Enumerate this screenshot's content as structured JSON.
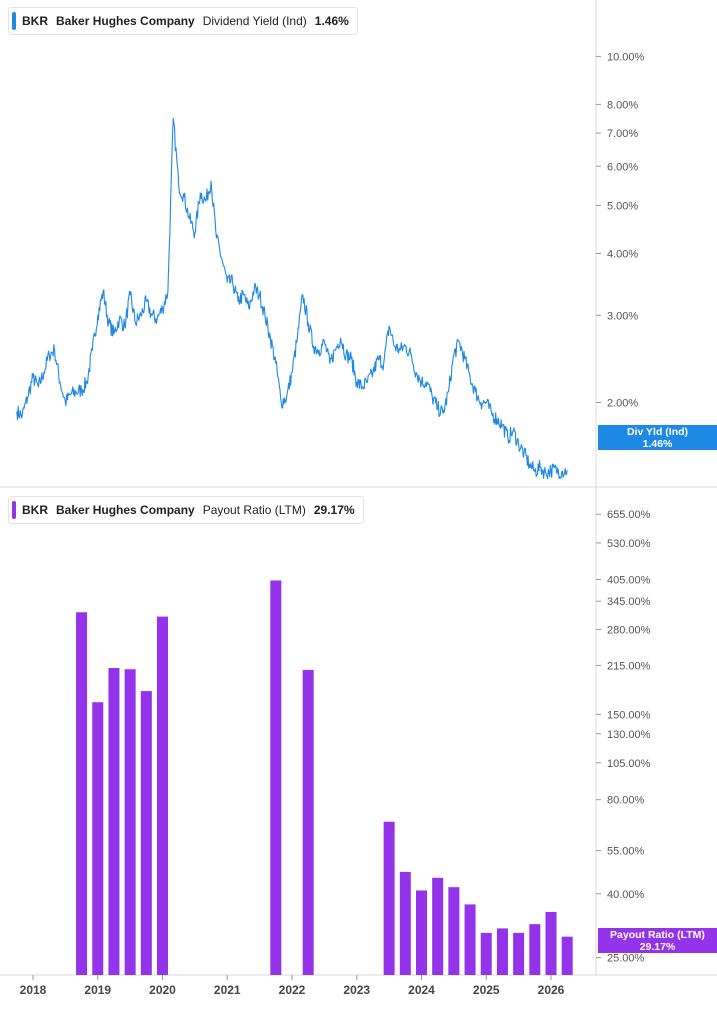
{
  "colors": {
    "yield": "#1e88e5",
    "payout": "#9333ea"
  },
  "yield_legend": {
    "ticker": "BKR",
    "company": "Baker Hughes Company",
    "metric": "Dividend Yield (Ind)",
    "value": "1.46%"
  },
  "payout_legend": {
    "ticker": "BKR",
    "company": "Baker Hughes Company",
    "metric": "Payout Ratio (LTM)",
    "value": "29.17%"
  },
  "yield_flag": {
    "label": "Div Yld (Ind)",
    "value": "1.46%"
  },
  "payout_flag": {
    "label": "Payout Ratio (LTM)",
    "value": "29.17%"
  },
  "chart_data": [
    {
      "type": "line",
      "y_scale": "log",
      "y_ticks": [
        "10.00%",
        "8.00%",
        "7.00%",
        "6.00%",
        "5.00%",
        "4.00%",
        "3.00%",
        "2.00%"
      ],
      "y_tick_values": [
        10,
        8,
        7,
        6,
        5,
        4,
        3,
        2
      ],
      "ylim": [
        1.35,
        13
      ],
      "x": [
        "2017-10",
        "2017-11",
        "2017-12",
        "2018-01",
        "2018-02",
        "2018-03",
        "2018-04",
        "2018-05",
        "2018-06",
        "2018-07",
        "2018-08",
        "2018-09",
        "2018-10",
        "2018-11",
        "2018-12",
        "2019-01",
        "2019-02",
        "2019-03",
        "2019-04",
        "2019-05",
        "2019-06",
        "2019-07",
        "2019-08",
        "2019-09",
        "2019-10",
        "2019-11",
        "2019-12",
        "2020-01",
        "2020-02",
        "2020-03",
        "2020-04",
        "2020-05",
        "2020-06",
        "2020-07",
        "2020-08",
        "2020-09",
        "2020-10",
        "2020-11",
        "2020-12",
        "2021-01",
        "2021-02",
        "2021-03",
        "2021-04",
        "2021-05",
        "2021-06",
        "2021-07",
        "2021-08",
        "2021-09",
        "2021-10",
        "2021-11",
        "2021-12",
        "2022-01",
        "2022-02",
        "2022-03",
        "2022-04",
        "2022-05",
        "2022-06",
        "2022-07",
        "2022-08",
        "2022-09",
        "2022-10",
        "2022-11",
        "2022-12",
        "2023-01",
        "2023-02",
        "2023-03",
        "2023-04",
        "2023-05",
        "2023-06",
        "2023-07",
        "2023-08",
        "2023-09",
        "2023-10",
        "2023-11",
        "2023-12",
        "2024-01",
        "2024-02",
        "2024-03",
        "2024-04",
        "2024-05",
        "2024-06",
        "2024-07",
        "2024-08",
        "2024-09",
        "2024-10",
        "2024-11",
        "2024-12",
        "2025-01",
        "2025-02",
        "2025-03",
        "2025-04",
        "2025-05",
        "2025-06",
        "2025-07",
        "2025-08",
        "2025-09",
        "2025-10",
        "2025-11",
        "2025-12",
        "2026-01",
        "2026-02",
        "2026-03",
        "2026-04"
      ],
      "values": [
        1.92,
        1.88,
        2.05,
        2.25,
        2.15,
        2.3,
        2.5,
        2.55,
        2.2,
        2.0,
        2.08,
        2.1,
        2.12,
        2.2,
        2.55,
        3.0,
        3.35,
        2.9,
        2.75,
        2.95,
        2.85,
        3.3,
        2.9,
        3.0,
        3.2,
        3.0,
        2.95,
        3.1,
        3.35,
        7.5,
        5.5,
        5.2,
        4.7,
        4.4,
        5.3,
        5.1,
        5.6,
        4.3,
        3.9,
        3.5,
        3.5,
        3.2,
        3.3,
        3.1,
        3.4,
        3.3,
        3.0,
        2.7,
        2.4,
        2.0,
        2.05,
        2.3,
        2.7,
        3.3,
        2.9,
        2.6,
        2.55,
        2.65,
        2.4,
        2.55,
        2.7,
        2.5,
        2.45,
        2.2,
        2.15,
        2.2,
        2.3,
        2.45,
        2.4,
        2.85,
        2.6,
        2.55,
        2.6,
        2.5,
        2.3,
        2.2,
        2.2,
        2.05,
        1.95,
        1.9,
        2.1,
        2.5,
        2.65,
        2.45,
        2.25,
        2.1,
        2.0,
        2.0,
        1.9,
        1.85,
        1.8,
        1.7,
        1.75,
        1.65,
        1.58,
        1.5,
        1.45,
        1.48,
        1.44,
        1.46,
        1.46,
        1.45,
        1.46
      ]
    },
    {
      "type": "bar",
      "y_scale": "log",
      "y_ticks": [
        "655.00%",
        "530.00%",
        "405.00%",
        "345.00%",
        "280.00%",
        "215.00%",
        "150.00%",
        "130.00%",
        "105.00%",
        "80.00%",
        "55.00%",
        "40.00%",
        "25.00%"
      ],
      "y_tick_values": [
        655,
        530,
        405,
        345,
        280,
        215,
        150,
        130,
        105,
        80,
        55,
        40,
        25
      ],
      "ylim": [
        22,
        800
      ],
      "categories": [
        "2018-Q4",
        "2019-Q1",
        "2019-Q2",
        "2019-Q3",
        "2019-Q4",
        "2020-Q1",
        "2021-Q4",
        "2022-Q2",
        "2023-Q3",
        "2023-Q4",
        "2024-Q1",
        "2024-Q2",
        "2024-Q3",
        "2024-Q4",
        "2025-Q1",
        "2025-Q2",
        "2025-Q3",
        "2025-Q4",
        "2026-Q1",
        "2026-Q2"
      ],
      "x_positions": [
        2018.75,
        2019.0,
        2019.25,
        2019.5,
        2019.75,
        2020.0,
        2021.75,
        2022.25,
        2023.5,
        2023.75,
        2024.0,
        2024.25,
        2024.5,
        2024.75,
        2025.0,
        2025.25,
        2025.5,
        2025.75,
        2026.0,
        2026.25
      ],
      "values": [
        318,
        164,
        211,
        209,
        178,
        308,
        402,
        208,
        68,
        47,
        41,
        45,
        42,
        37,
        30,
        31,
        30,
        32,
        35,
        29.17
      ]
    }
  ],
  "x_axis": {
    "labels": [
      "2018",
      "2019",
      "2020",
      "2021",
      "2022",
      "2023",
      "2024",
      "2025",
      "2026"
    ]
  }
}
